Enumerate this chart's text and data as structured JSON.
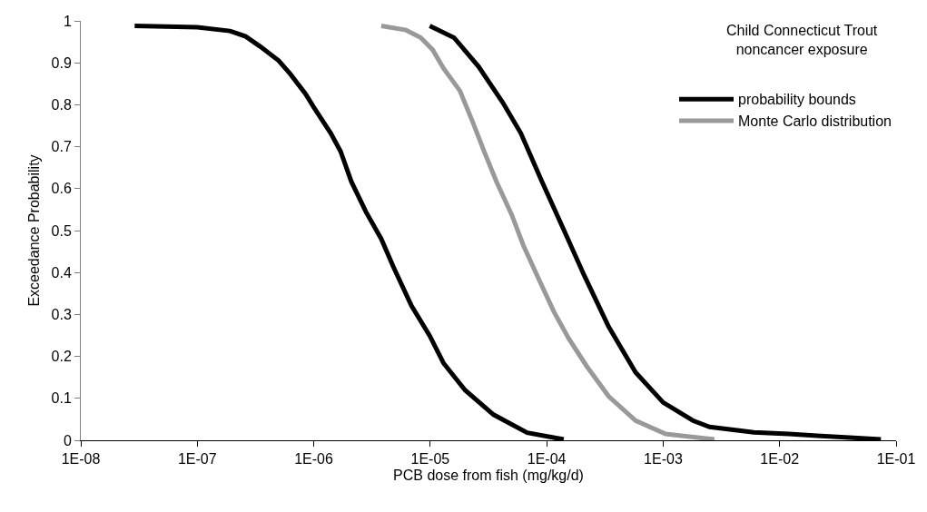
{
  "chart_data": {
    "type": "line",
    "title": "Child Connecticut Trout\nnoncancer exposure",
    "xlabel": "PCB dose from fish (mg/kg/d)",
    "ylabel": "Exceedance Probability",
    "series": [
      {
        "name": "probability bounds",
        "color": "#000000",
        "x": [
          2.9e-08,
          1e-07,
          1.9e-07,
          2.6e-07,
          3.5e-07,
          5e-07,
          6.3e-07,
          8.5e-07,
          1e-06,
          1.4e-06,
          1.7e-06,
          2.1e-06,
          2.8e-06,
          3.8e-06,
          4.8e-06,
          6.9e-06,
          9.9e-06,
          1.3e-05,
          2e-05,
          3.5e-05,
          6.8e-05,
          0.00014
        ],
        "values": [
          0.988,
          0.985,
          0.976,
          0.963,
          0.938,
          0.905,
          0.873,
          0.826,
          0.794,
          0.732,
          0.689,
          0.617,
          0.545,
          0.48,
          0.415,
          0.321,
          0.249,
          0.184,
          0.119,
          0.061,
          0.018,
          0.002
        ]
      },
      {
        "color": "#000000",
        "x": [
          9.9e-06,
          1.6e-05,
          2.6e-05,
          4.2e-05,
          6e-05,
          9.1e-05,
          0.00014,
          0.00021,
          0.00034,
          0.00058,
          0.001,
          0.0018,
          0.0025,
          0.006,
          0.012,
          0.021,
          0.043,
          0.074
        ],
        "values": [
          0.988,
          0.96,
          0.891,
          0.805,
          0.732,
          0.617,
          0.502,
          0.393,
          0.271,
          0.162,
          0.09,
          0.047,
          0.032,
          0.019,
          0.015,
          0.011,
          0.006,
          0.002
        ]
      },
      {
        "name": "Monte Carlo distribution",
        "color": "#999999",
        "x": [
          3.8e-06,
          6.2e-06,
          8.3e-06,
          1.05e-05,
          1.3e-05,
          1.8e-05,
          2.3e-05,
          2.9e-05,
          3.7e-05,
          5e-05,
          6.3e-05,
          8.5e-05,
          0.000115,
          0.000155,
          0.00022,
          0.00034,
          0.00058,
          0.00105,
          0.00275
        ],
        "values": [
          0.988,
          0.978,
          0.96,
          0.931,
          0.887,
          0.833,
          0.761,
          0.689,
          0.617,
          0.538,
          0.465,
          0.386,
          0.307,
          0.242,
          0.177,
          0.105,
          0.047,
          0.015,
          0.002
        ]
      }
    ],
    "log": "x",
    "xlim": [
      1e-08,
      0.1
    ],
    "xticks": [
      {
        "value": 1e-08,
        "label": "1E-08"
      },
      {
        "value": 1e-07,
        "label": "1E-07"
      },
      {
        "value": 1e-06,
        "label": "1E-06"
      },
      {
        "value": 1e-05,
        "label": "1E-05"
      },
      {
        "value": 0.0001,
        "label": "1E-04"
      },
      {
        "value": 0.001,
        "label": "1E-03"
      },
      {
        "value": 0.01,
        "label": "1E-02"
      },
      {
        "value": 0.1,
        "label": "1E-01"
      }
    ],
    "ylim": [
      0,
      1
    ],
    "yticks": [
      0,
      0.1,
      0.2,
      0.3,
      0.4,
      0.5,
      0.6,
      0.7,
      0.8,
      0.9,
      1
    ],
    "grid": false,
    "legend": "top right",
    "marker": "none",
    "line_style": "solid"
  }
}
